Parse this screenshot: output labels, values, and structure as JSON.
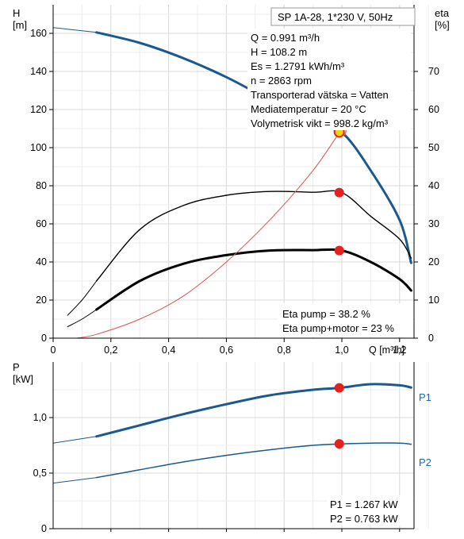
{
  "chart_data": [
    {
      "type": "line",
      "title": "SP 1A-28, 1*230 V, 50Hz",
      "ylabel_left": "H",
      "yunit_left": "[m]",
      "ylabel_right": "eta",
      "yunit_right": "[%]",
      "xlabel": "Q [m³/h]",
      "xlim": [
        0,
        1.25
      ],
      "ylim_left": [
        0,
        175
      ],
      "ylim_right": [
        0,
        87.5
      ],
      "x_ticks": [
        "0",
        "0,2",
        "0,4",
        "0,6",
        "0,8",
        "1,0",
        "1,2"
      ],
      "y_ticks_left": [
        "0",
        "20",
        "40",
        "60",
        "80",
        "100",
        "120",
        "140",
        "160"
      ],
      "y_ticks_right": [
        "0",
        "10",
        "20",
        "30",
        "40",
        "50",
        "60",
        "70"
      ],
      "grid": true,
      "info_lines": [
        "Q = 0.991 m³/h",
        "H = 108.2 m",
        "Es = 1.2791 kWh/m³",
        "n = 2863 rpm",
        "Transporterad vätska = Vatten",
        "Mediatemperatur = 20 °C",
        "Volymetrisk vikt = 998.2 kg/m³"
      ],
      "eta_lines": [
        "Eta pump = 38.2 %",
        "Eta pump+motor = 23 %"
      ],
      "series": [
        {
          "axis": "left",
          "color": "#1a5a8e",
          "x": [
            0.15,
            0.3,
            0.45,
            0.6,
            0.75,
            0.9,
            1.0,
            1.1,
            1.2,
            1.24
          ],
          "y": [
            160.5,
            155,
            147,
            137,
            125,
            113,
            108,
            88,
            62,
            39.5
          ]
        },
        {
          "axis": "left",
          "color": "#1a5a8e",
          "x": [
            0,
            0.15
          ],
          "y": [
            163,
            160.5
          ]
        },
        {
          "axis": "right",
          "color": "#000000",
          "x": [
            0.15,
            0.3,
            0.45,
            0.6,
            0.75,
            0.9,
            1.0,
            1.1,
            1.2,
            1.24
          ],
          "y": [
            15,
            28.5,
            34.8,
            37.5,
            38.5,
            38.3,
            38.2,
            32,
            26,
            21
          ]
        },
        {
          "axis": "right",
          "color": "#000000",
          "x": [
            0.05,
            0.1,
            0.15
          ],
          "y": [
            6,
            10,
            15
          ]
        },
        {
          "axis": "right",
          "color": "#000000",
          "x": [
            0.15,
            0.3,
            0.45,
            0.6,
            0.75,
            0.9,
            1.0,
            1.1,
            1.2,
            1.24
          ],
          "y": [
            7.5,
            15,
            19.5,
            21.8,
            23,
            23.1,
            23,
            20,
            15.5,
            12.5
          ]
        },
        {
          "axis": "right",
          "color": "#000000",
          "x": [
            0.05,
            0.1,
            0.15
          ],
          "y": [
            3,
            5,
            7.5
          ]
        },
        {
          "axis": "left",
          "color": "#e05050",
          "x": [
            0.08,
            0.15,
            0.3,
            0.45,
            0.6,
            0.75,
            0.9,
            1.0
          ],
          "y": [
            0,
            2,
            10,
            22,
            40,
            62,
            88,
            110
          ]
        }
      ],
      "duty_points": [
        {
          "axis": "left",
          "x": 0.991,
          "y": 108.2,
          "color": "#f2d600"
        },
        {
          "axis": "right",
          "x": 0.991,
          "y": 38.2,
          "color": "#e52020"
        },
        {
          "axis": "right",
          "x": 0.991,
          "y": 23,
          "color": "#e52020"
        }
      ]
    },
    {
      "type": "line",
      "ylabel": "P",
      "yunit": "[kW]",
      "xlim": [
        0,
        1.25
      ],
      "ylim": [
        0,
        1.5
      ],
      "x_ticks": [
        "0,2",
        "0,4",
        "0,6",
        "0,8",
        "1,0",
        "1,2"
      ],
      "y_ticks": [
        "0",
        "0,5",
        "1,0"
      ],
      "grid": true,
      "info_lines": [
        "P1 = 1.267 kW",
        "P2 = 0.763 kW"
      ],
      "series": [
        {
          "name": "P1",
          "color": "#1a5a8e",
          "x": [
            0.15,
            0.3,
            0.45,
            0.6,
            0.75,
            0.9,
            0.991,
            1.1,
            1.2,
            1.24
          ],
          "y": [
            0.83,
            0.93,
            1.03,
            1.12,
            1.2,
            1.25,
            1.267,
            1.3,
            1.29,
            1.27
          ]
        },
        {
          "color": "#1a5a8e",
          "x": [
            0,
            0.15
          ],
          "y": [
            0.77,
            0.83
          ]
        },
        {
          "name": "P2",
          "color": "#1a5a8e",
          "x": [
            0.15,
            0.3,
            0.45,
            0.6,
            0.75,
            0.9,
            0.991,
            1.1,
            1.2,
            1.24
          ],
          "y": [
            0.46,
            0.53,
            0.6,
            0.66,
            0.71,
            0.75,
            0.763,
            0.77,
            0.77,
            0.76
          ]
        },
        {
          "color": "#1a5a8e",
          "x": [
            0,
            0.15
          ],
          "y": [
            0.41,
            0.46
          ]
        }
      ],
      "duty_points": [
        {
          "x": 0.991,
          "y": 1.267,
          "color": "#e52020"
        },
        {
          "x": 0.991,
          "y": 0.763,
          "color": "#e52020"
        }
      ]
    }
  ]
}
